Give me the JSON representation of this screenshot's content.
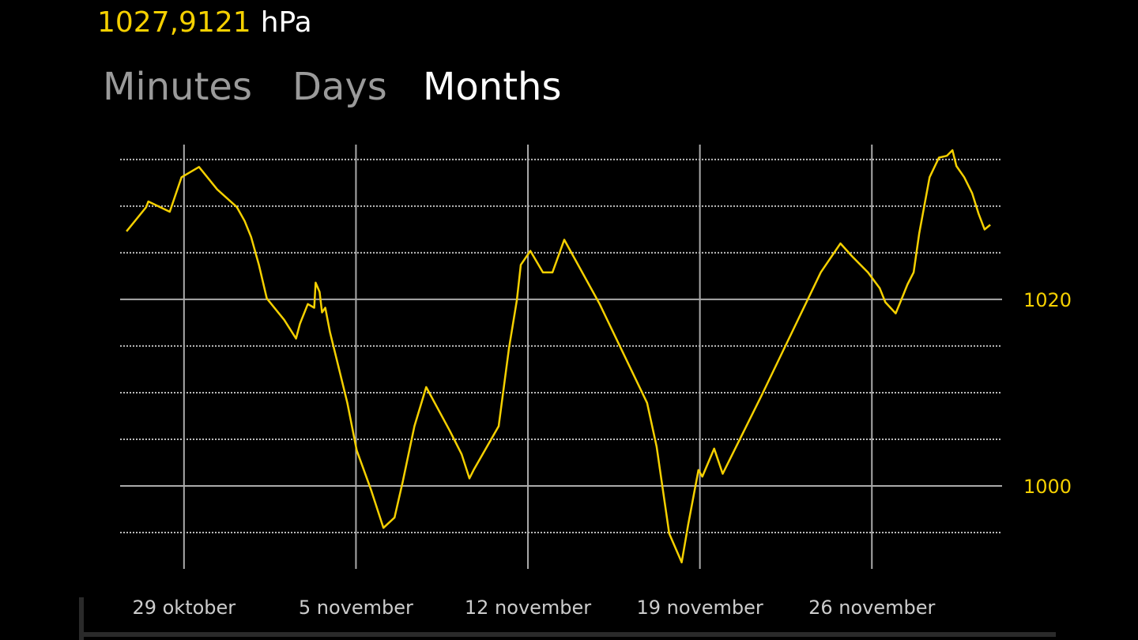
{
  "reading": {
    "value": "1027,9121",
    "unit": "hPa"
  },
  "tabs": [
    "Minutes",
    "Days",
    "Months"
  ],
  "active_tab_index": 2,
  "chart_data": {
    "type": "line",
    "x": [
      26.66,
      27.46,
      27.55,
      28.42,
      28.9,
      29.61,
      30.35,
      31.15,
      31.47,
      31.73,
      32.05,
      32.37,
      33.08,
      33.56,
      33.72,
      34.04,
      34.3,
      34.36,
      34.52,
      34.62,
      34.75,
      34.94,
      35.26,
      35.65,
      36.03,
      36.61,
      37.12,
      37.57,
      37.9,
      38.38,
      38.86,
      39.82,
      40.3,
      40.62,
      40.79,
      41.81,
      42.23,
      42.55,
      42.71,
      43.1,
      43.61,
      44.0,
      44.48,
      45.92,
      47.85,
      48.24,
      48.75,
      49.26,
      49.52,
      49.94,
      50.1,
      50.58,
      50.93,
      52.51,
      54.92,
      55.72,
      56.2,
      56.84,
      57.32,
      57.55,
      57.97,
      58.19,
      58.45,
      58.7,
      58.93,
      59.35,
      59.73,
      60.05,
      60.28,
      60.44,
      60.76,
      61.08,
      61.34,
      61.59,
      61.82
    ],
    "series": [
      {
        "color": "#f5d000",
        "values": [
          1027.3,
          1029.9,
          1030.5,
          1029.4,
          1033.1,
          1034.2,
          1031.8,
          1029.9,
          1028.4,
          1026.7,
          1023.7,
          1020.1,
          1017.8,
          1015.8,
          1017.4,
          1019.5,
          1019.1,
          1021.8,
          1020.8,
          1018.6,
          1019.1,
          1016.5,
          1013.1,
          1008.9,
          1003.8,
          999.6,
          995.5,
          996.6,
          1000.4,
          1006.4,
          1010.6,
          1005.9,
          1003.4,
          1000.8,
          1001.7,
          1006.4,
          1014.8,
          1019.9,
          1023.7,
          1025.2,
          1022.9,
          1022.9,
          1026.4,
          1019.5,
          1008.9,
          1004.2,
          994.9,
          991.8,
          995.8,
          1001.7,
          1001.0,
          1004.0,
          1001.3,
          1009.7,
          1022.9,
          1026.0,
          1024.6,
          1022.9,
          1021.2,
          1019.7,
          1018.5,
          1019.9,
          1021.6,
          1022.9,
          1027.1,
          1033.1,
          1035.2,
          1035.4,
          1036.0,
          1034.3,
          1033.1,
          1031.4,
          1029.2,
          1027.5,
          1028.0
        ]
      }
    ],
    "xlim": [
      26.4,
      62.3
    ],
    "xticks": [
      {
        "value": 29,
        "label": "29 oktober"
      },
      {
        "value": 36,
        "label": "5 november"
      },
      {
        "value": 43,
        "label": "12 november"
      },
      {
        "value": 50,
        "label": "19 november"
      },
      {
        "value": 57,
        "label": "26 november"
      }
    ],
    "ylim": [
      991.1,
      1036.6
    ],
    "yticks": [
      1000,
      1020
    ],
    "minor_yticks": [
      995,
      1005,
      1010,
      1015,
      1025,
      1030,
      1035
    ],
    "grid": true
  }
}
